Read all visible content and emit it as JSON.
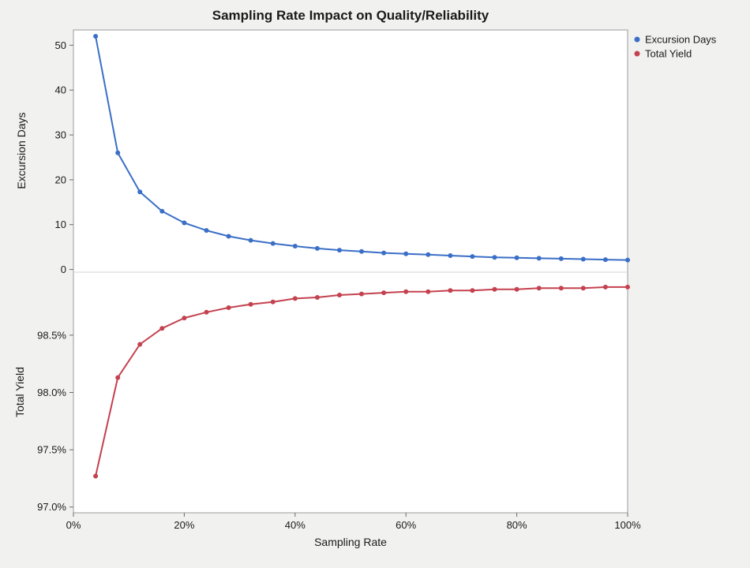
{
  "window": {
    "title": "Sampling Rate Impact on Quality/Reliability"
  },
  "colors": {
    "background": "#f1f1ef",
    "plot_background": "#ffffff",
    "frame": "#9b9b9b",
    "separator": "#d5d5d5",
    "excursion_blue": "#3a6fc7",
    "yield_red": "#c4414f",
    "text": "#1a1a1a"
  },
  "chart_data": {
    "type": "line",
    "title": "Sampling Rate Impact on Quality/Reliability",
    "xlabel": "Sampling Rate",
    "xlim": [
      0,
      100
    ],
    "grid": false,
    "x_ticks": [
      {
        "value": 0,
        "label": "0%"
      },
      {
        "value": 20,
        "label": "20%"
      },
      {
        "value": 40,
        "label": "40%"
      },
      {
        "value": 60,
        "label": "60%"
      },
      {
        "value": 80,
        "label": "80%"
      },
      {
        "value": 100,
        "label": "100%"
      }
    ],
    "x": [
      4,
      8,
      12,
      16,
      20,
      24,
      28,
      32,
      36,
      40,
      44,
      48,
      52,
      56,
      60,
      64,
      68,
      72,
      76,
      80,
      84,
      88,
      92,
      96,
      100
    ],
    "panels": {
      "top": {
        "ylabel": "Excursion Days",
        "ylim": [
          -0.6,
          53.4
        ],
        "yticks": [
          {
            "value": 0,
            "label": "0"
          },
          {
            "value": 10,
            "label": "10"
          },
          {
            "value": 20,
            "label": "20"
          },
          {
            "value": 30,
            "label": "30"
          },
          {
            "value": 40,
            "label": "40"
          },
          {
            "value": 50,
            "label": "50"
          }
        ]
      },
      "bottom": {
        "ylabel": "Total Yield",
        "ylim": [
          96.95,
          99.05
        ],
        "yticks": [
          {
            "value": 97.0,
            "label": "97.0%"
          },
          {
            "value": 97.5,
            "label": "97.5%"
          },
          {
            "value": 98.0,
            "label": "98.0%"
          },
          {
            "value": 98.5,
            "label": "98.5%"
          }
        ]
      }
    },
    "series": [
      {
        "name": "Excursion Days",
        "panel": "top",
        "color": "#3a6fc7",
        "marker": "circle",
        "values": [
          52.0,
          26.0,
          17.3,
          13.0,
          10.4,
          8.7,
          7.4,
          6.5,
          5.8,
          5.2,
          4.7,
          4.3,
          4.0,
          3.7,
          3.5,
          3.3,
          3.1,
          2.9,
          2.7,
          2.6,
          2.5,
          2.4,
          2.3,
          2.2,
          2.1
        ]
      },
      {
        "name": "Total Yield",
        "panel": "bottom",
        "color": "#c4414f",
        "marker": "circle",
        "values": [
          97.27,
          98.13,
          98.42,
          98.56,
          98.65,
          98.7,
          98.74,
          98.77,
          98.79,
          98.82,
          98.83,
          98.85,
          98.86,
          98.87,
          98.88,
          98.88,
          98.89,
          98.89,
          98.9,
          98.9,
          98.91,
          98.91,
          98.91,
          98.92,
          98.92
        ]
      }
    ],
    "legend": {
      "position": "top-right",
      "items": [
        {
          "label": "Excursion Days",
          "color": "#3a6fc7"
        },
        {
          "label": "Total Yield",
          "color": "#c4414f"
        }
      ]
    }
  }
}
